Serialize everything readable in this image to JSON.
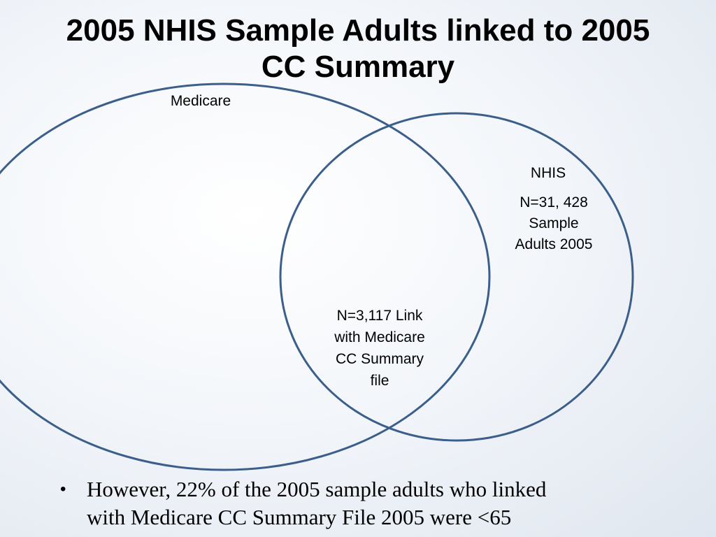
{
  "slide": {
    "title_line1": "2005 NHIS Sample Adults linked to 2005",
    "title_line2": "CC Summary",
    "venn": {
      "stroke_color": "#3b5f8a",
      "sets": [
        {
          "id": "medicare",
          "label": "Medicare"
        },
        {
          "id": "nhis",
          "label": "NHIS",
          "count_lines": [
            "N=31, 428",
            "Sample",
            "Adults 2005"
          ]
        }
      ],
      "overlap": {
        "count_lines": [
          "N=3,117 Link",
          "with Medicare",
          "CC Summary",
          "file"
        ]
      }
    },
    "bullets": [
      {
        "lines": [
          "However, 22% of the 2005 sample adults who linked",
          "with Medicare CC Summary File 2005 were <65"
        ]
      }
    ]
  }
}
